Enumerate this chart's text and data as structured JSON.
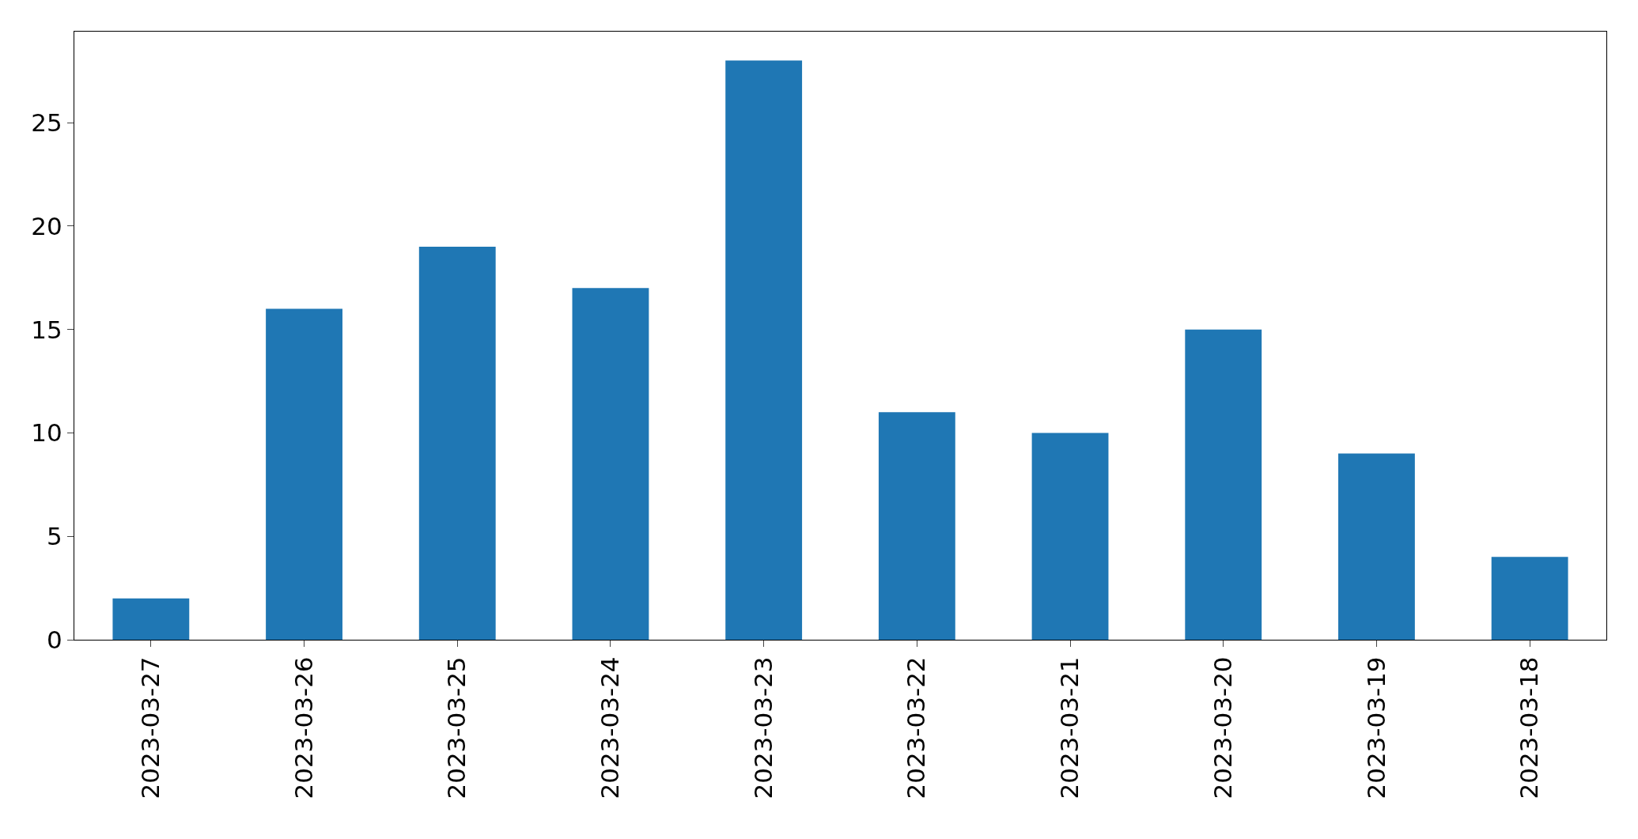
{
  "chart_data": {
    "type": "bar",
    "categories": [
      "2023-03-27",
      "2023-03-26",
      "2023-03-25",
      "2023-03-24",
      "2023-03-23",
      "2023-03-22",
      "2023-03-21",
      "2023-03-20",
      "2023-03-19",
      "2023-03-18"
    ],
    "values": [
      2,
      16,
      19,
      17,
      28,
      11,
      10,
      15,
      9,
      4
    ],
    "color": "#1f77b4",
    "ylim": [
      0,
      29.4
    ],
    "yticks": [
      0,
      5,
      10,
      15,
      20,
      25
    ],
    "grid": false,
    "legend": false
  }
}
